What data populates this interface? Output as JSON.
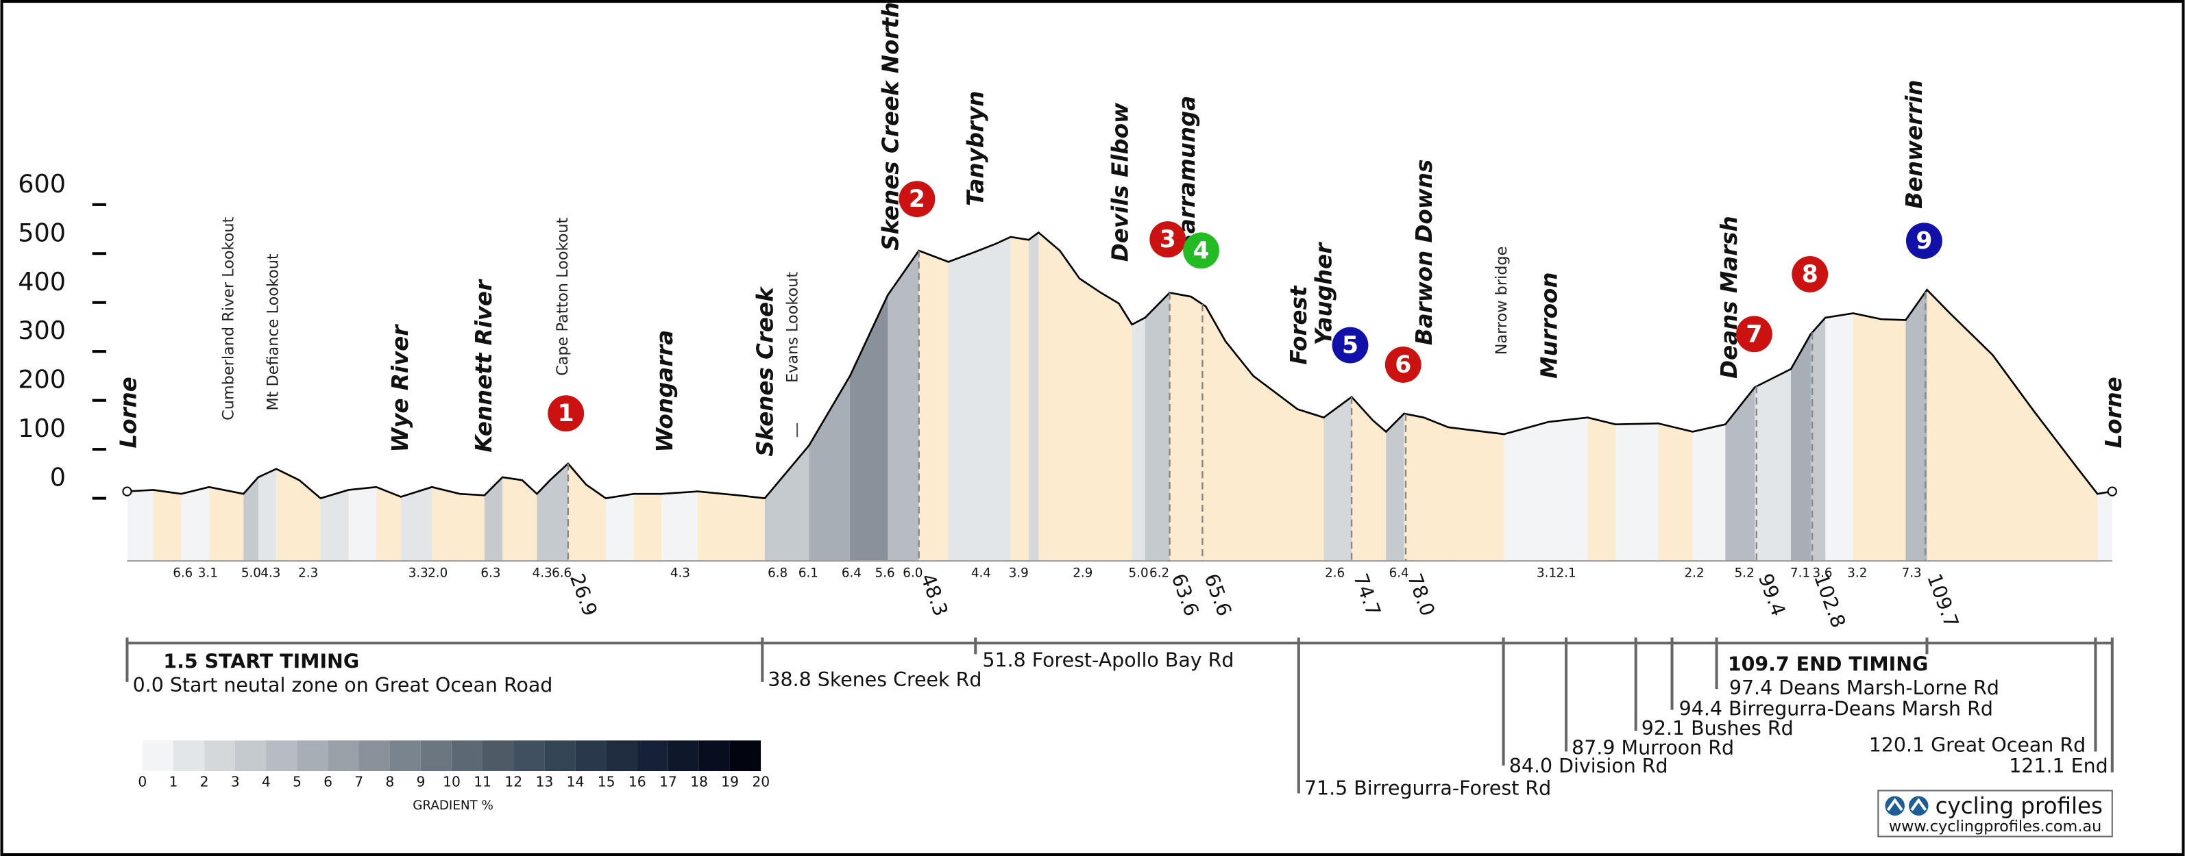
{
  "chart_data": {
    "type": "area",
    "xlim": [
      0,
      121.1
    ],
    "ylim": [
      -128,
      600
    ],
    "yticks": [
      0,
      100,
      200,
      300,
      400,
      500,
      600
    ],
    "x": [
      0.0,
      1.6,
      3.3,
      5.0,
      7.1,
      8.0,
      9.1,
      10.5,
      11.8,
      13.5,
      15.2,
      16.7,
      18.6,
      20.3,
      21.8,
      22.9,
      24.1,
      25.0,
      25.8,
      26.9,
      28.0,
      29.2,
      30.9,
      32.6,
      34.8,
      37.3,
      38.9,
      41.6,
      44.1,
      46.4,
      48.3,
      50.1,
      51.7,
      53.0,
      53.9,
      55.0,
      55.6,
      56.9,
      58.1,
      59.4,
      60.5,
      61.3,
      62.1,
      63.6,
      64.9,
      65.8,
      67.0,
      68.7,
      71.4,
      73.0,
      74.7,
      76.0,
      76.8,
      77.9,
      79.1,
      80.6,
      84.0,
      86.7,
      89.1,
      90.8,
      93.4,
      95.5,
      97.5,
      99.3,
      101.5,
      102.7,
      103.6,
      105.3,
      107.0,
      108.5,
      109.8,
      111.2,
      113.8,
      116.3,
      118.9,
      120.2,
      121.1
    ],
    "values": [
      14,
      17,
      9,
      23,
      9,
      43,
      60,
      37,
      0,
      17,
      23,
      3,
      23,
      9,
      6,
      43,
      37,
      9,
      37,
      71,
      28,
      0,
      9,
      9,
      14,
      6,
      0,
      108,
      250,
      415,
      506,
      483,
      503,
      520,
      534,
      528,
      543,
      506,
      449,
      420,
      398,
      355,
      369,
      420,
      412,
      392,
      321,
      250,
      182,
      165,
      207,
      159,
      136,
      173,
      165,
      145,
      131,
      156,
      165,
      151,
      153,
      136,
      151,
      227,
      264,
      335,
      369,
      378,
      366,
      364,
      426,
      378,
      293,
      179,
      65,
      9,
      14
    ],
    "line_color": "#000000",
    "descent_color": "#fdebd0",
    "markers": [
      26.9,
      48.3,
      63.6,
      65.6,
      74.7,
      {
        "value": 78,
        "label": "78.0"
      },
      99.4,
      102.8,
      109.7
    ],
    "gradient_labels": [
      "6.6",
      "3.1",
      "5.0",
      "4.3",
      "2.3",
      "3.3",
      "2.0",
      "6.3",
      "4.3",
      "6.6",
      "4.3",
      "6.8",
      "6.1",
      "6.4",
      "5.6",
      "6.0",
      "4.4",
      "3.9",
      "2.9",
      "5.0",
      "6.2",
      "2.6",
      "6.4",
      "3.1",
      "2.1",
      "2.2",
      "5.2",
      "7.1",
      "3.6",
      "3.2",
      "7.3"
    ],
    "places": [
      "Lorne",
      "Wye River",
      "Kennett River",
      "Wongarra",
      "Skenes Creek",
      "Skenes Creek North",
      "Tanybryn",
      "Devils Elbow",
      "Barramunga",
      "Forest",
      "Yaugher",
      "Barwon Downs",
      "Murroon",
      "Deans Marsh",
      "Benwerrin",
      "Lorne"
    ],
    "lookouts": [
      "Cumberland River Lookout",
      "Mt Defiance Lookout",
      "Cape Patton Lookout",
      "Evans Lookout",
      "Narrow bridge"
    ],
    "climbs": [
      {
        "label": "1",
        "color": "#cc1111"
      },
      {
        "label": "2",
        "color": "#cc1111"
      },
      {
        "label": "3",
        "color": "#cc1111"
      },
      {
        "label": "4",
        "color": "#22bb22"
      },
      {
        "label": "5",
        "color": "#1111aa"
      },
      {
        "label": "6",
        "color": "#cc1111"
      },
      {
        "label": "7",
        "color": "#cc1111"
      },
      {
        "label": "8",
        "color": "#cc1111"
      },
      {
        "label": "9",
        "color": "#1111aa"
      }
    ],
    "route_notes": [
      "1.5 START TIMING",
      "0.0 Start neutal zone on Great Ocean Road",
      "38.8 Skenes Creek Rd",
      "51.8 Forest-Apollo Bay Rd",
      "71.5 Birregurra-Forest Rd",
      "84.0 Division Rd",
      "87.9 Murroon Rd",
      "92.1 Bushes Rd",
      "94.4 Birregurra-Deans Marsh Rd",
      "97.4 Deans Marsh-Lorne Rd",
      "109.7 END TIMING",
      "120.1 Great Ocean Rd",
      "121.1 End"
    ],
    "gradient_scale": {
      "title": "GRADIENT %",
      "ticks": [
        0,
        1,
        2,
        3,
        4,
        5,
        6,
        7,
        8,
        9,
        10,
        11,
        12,
        13,
        14,
        15,
        16,
        17,
        18,
        19,
        20
      ],
      "colors": [
        "#f3f4f5",
        "#e3e6e8",
        "#d4d8db",
        "#c5cacf",
        "#b6bcc2",
        "#a7aeb5",
        "#98a0a8",
        "#89929b",
        "#7a848e",
        "#6b7681",
        "#5c6874",
        "#4e5b67",
        "#405060",
        "#344556",
        "#29384b",
        "#1f2c40",
        "#162036",
        "#0f172b",
        "#080e20",
        "#020510"
      ]
    },
    "logo": {
      "name": "cycling profiles",
      "url": "www.cyclingprofiles.com.au"
    }
  }
}
